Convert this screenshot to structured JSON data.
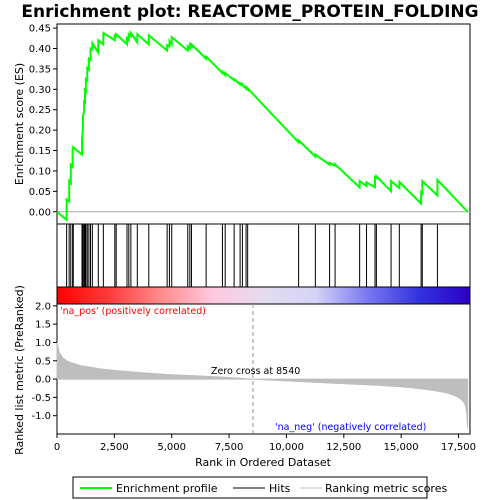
{
  "chart_data": {
    "type": "line",
    "title": "Enrichment plot: REACTOME_PROTEIN_FOLDING",
    "xlabel": "Rank in Ordered Dataset",
    "ylabel_top": "Enrichment score (ES)",
    "ylabel_bottom": "Ranked list metric (PreRanked)",
    "xlim": [
      0,
      18000
    ],
    "es_ylim": [
      -0.03,
      0.46
    ],
    "metric_ylim": [
      -1.5,
      2.05
    ],
    "x_ticks": [
      0,
      2500,
      5000,
      7500,
      10000,
      12500,
      15000,
      17500
    ],
    "x_tick_labels": [
      "0",
      "2,500",
      "5,000",
      "7,500",
      "10,000",
      "12,500",
      "15,000",
      "17,500"
    ],
    "es_ticks": [
      0.0,
      0.05,
      0.1,
      0.15,
      0.2,
      0.25,
      0.3,
      0.35,
      0.4,
      0.45
    ],
    "es_tick_labels": [
      "0.00",
      "0.05",
      "0.10",
      "0.15",
      "0.20",
      "0.25",
      "0.30",
      "0.35",
      "0.40",
      "0.45"
    ],
    "metric_ticks": [
      2.0,
      1.5,
      1.0,
      0.5,
      0.0,
      -0.5,
      -1.0
    ],
    "metric_tick_labels": [
      "2.0",
      "1.5",
      "1.0",
      "0.5",
      "0.0",
      "-0.5",
      "-1.0"
    ],
    "hits": [
      420,
      530,
      600,
      680,
      710,
      1090,
      1130,
      1180,
      1220,
      1260,
      1320,
      1390,
      1460,
      1540,
      1800,
      2020,
      2520,
      2580,
      3050,
      3130,
      3220,
      3500,
      4000,
      4800,
      4900,
      5000,
      5700,
      5790,
      5860,
      6500,
      7210,
      7330,
      7720,
      7980,
      8080,
      8240,
      8310,
      10530,
      11260,
      11880,
      12120,
      13190,
      13490,
      13860,
      13920,
      14560,
      14920,
      15870,
      15920,
      16580
    ],
    "es_series": {
      "name": "Enrichment profile",
      "x": [
        0,
        420,
        421,
        530,
        531,
        600,
        601,
        680,
        681,
        710,
        711,
        1090,
        1091,
        1130,
        1131,
        1180,
        1181,
        1220,
        1221,
        1260,
        1261,
        1320,
        1321,
        1390,
        1391,
        1460,
        1461,
        1540,
        1541,
        1800,
        1801,
        2020,
        2021,
        2520,
        2521,
        2580,
        2581,
        3050,
        3051,
        3130,
        3131,
        3220,
        3221,
        3500,
        3501,
        4000,
        4001,
        4800,
        4801,
        4900,
        4901,
        5000,
        5001,
        5700,
        5701,
        5790,
        5791,
        5860,
        5861,
        6500,
        6501,
        7210,
        7211,
        7330,
        7331,
        7720,
        7721,
        7980,
        7981,
        8080,
        8081,
        8240,
        8241,
        8310,
        8311,
        10530,
        10531,
        11260,
        11261,
        11880,
        11881,
        12120,
        12121,
        13190,
        13191,
        13490,
        13491,
        13860,
        13861,
        13920,
        13921,
        14560,
        14561,
        14920,
        14921,
        15870,
        15871,
        15920,
        15921,
        16580,
        16581,
        17900
      ],
      "y": [
        0.0,
        -0.02,
        0.03,
        0.025,
        0.075,
        0.07,
        0.115,
        0.11,
        0.155,
        0.155,
        0.158,
        0.14,
        0.175,
        0.205,
        0.235,
        0.245,
        0.27,
        0.268,
        0.298,
        0.295,
        0.325,
        0.322,
        0.352,
        0.348,
        0.375,
        0.372,
        0.4,
        0.398,
        0.413,
        0.39,
        0.42,
        0.41,
        0.438,
        0.42,
        0.432,
        0.43,
        0.435,
        0.41,
        0.425,
        0.42,
        0.435,
        0.43,
        0.438,
        0.415,
        0.435,
        0.41,
        0.432,
        0.395,
        0.408,
        0.405,
        0.418,
        0.41,
        0.428,
        0.395,
        0.405,
        0.4,
        0.41,
        0.405,
        0.41,
        0.375,
        0.38,
        0.34,
        0.343,
        0.335,
        0.34,
        0.322,
        0.325,
        0.312,
        0.315,
        0.31,
        0.312,
        0.302,
        0.305,
        0.3,
        0.302,
        0.17,
        0.175,
        0.135,
        0.14,
        0.115,
        0.12,
        0.113,
        0.116,
        0.06,
        0.075,
        0.063,
        0.072,
        0.06,
        0.085,
        0.083,
        0.087,
        0.05,
        0.075,
        0.058,
        0.073,
        0.02,
        0.045,
        0.04,
        0.075,
        0.04,
        0.078,
        0.0
      ]
    },
    "metric_series": {
      "x": [
        0,
        100,
        250,
        500,
        1000,
        2000,
        3000,
        4000,
        5000,
        6000,
        7000,
        8000,
        8540,
        9000,
        10000,
        11000,
        12000,
        13000,
        14000,
        15000,
        15500,
        16000,
        16500,
        17000,
        17300,
        17550,
        17700,
        17800,
        17850,
        17900
      ],
      "y": [
        1.0,
        0.72,
        0.58,
        0.47,
        0.37,
        0.27,
        0.21,
        0.16,
        0.12,
        0.09,
        0.06,
        0.025,
        0.0,
        -0.02,
        -0.05,
        -0.08,
        -0.11,
        -0.14,
        -0.17,
        -0.21,
        -0.24,
        -0.28,
        -0.32,
        -0.38,
        -0.44,
        -0.52,
        -0.6,
        -0.72,
        -0.88,
        -1.35
      ]
    },
    "zero_cross_x": 8540,
    "annotations": {
      "pos_label": "'na_pos' (positively correlated)",
      "neg_label": "'na_neg' (negatively correlated)",
      "zero_cross_label": "Zero cross at 8540"
    },
    "legend": {
      "placement": "bottom",
      "items": [
        {
          "label": "Enrichment profile",
          "kind": "es-line"
        },
        {
          "label": "Hits",
          "kind": "hit-line"
        },
        {
          "label": "Ranking metric scores",
          "kind": "metric-line"
        }
      ]
    },
    "colors": {
      "es_line": "#00ff00",
      "hits": "#000000",
      "metric_fill": "#bebebe",
      "pos_text": "#ff0000",
      "neg_text": "#0000ff",
      "zero_cross_line": "#999999",
      "panel_border": "#000000",
      "gradient_stops": [
        "#ff0000",
        "#ff3b3b",
        "#ff8a8a",
        "#ffc8dd",
        "#e4dcf0",
        "#d4d4f6",
        "#7a7af0",
        "#3333dd",
        "#2a00c8"
      ]
    },
    "grid": false
  }
}
